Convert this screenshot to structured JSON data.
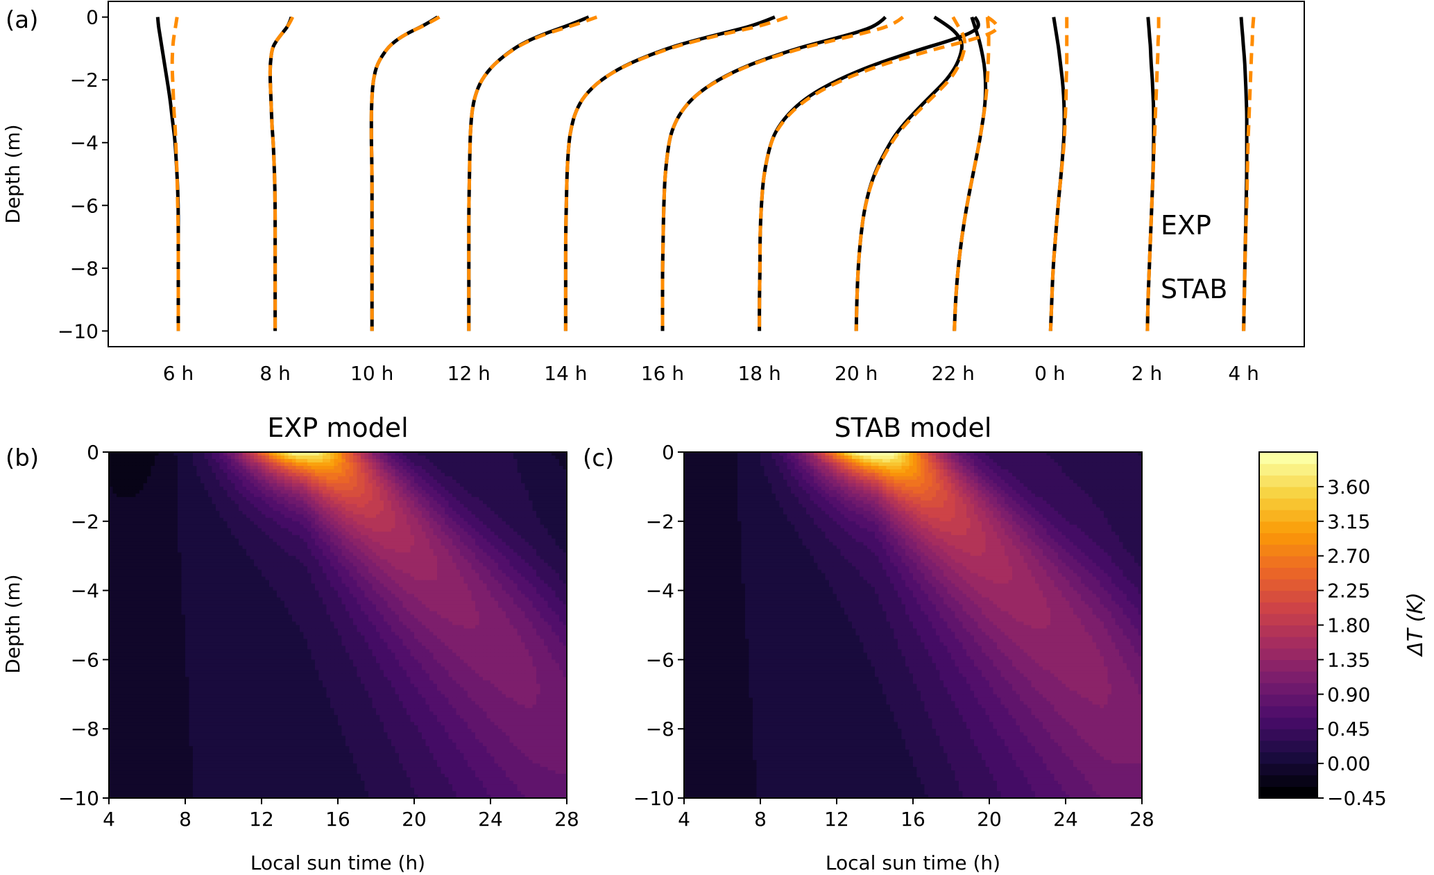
{
  "colors": {
    "exp": "#000000",
    "stab": "#ff8c00",
    "stab_title": "#ff8c00",
    "colormap": [
      "#000004",
      "#1b0c41",
      "#4a0c6b",
      "#781c6d",
      "#a52c60",
      "#cf4446",
      "#ed6925",
      "#fb9b06",
      "#f7d13d",
      "#fcffa4"
    ]
  },
  "chart_data": [
    {
      "panel_label": "(a)",
      "type": "line",
      "ylabel": "Depth (m)",
      "ylim": [
        -10.5,
        0.5
      ],
      "yticks": [
        0,
        -2,
        -4,
        -6,
        -8,
        -10
      ],
      "ytick_labels": [
        "0",
        "−2",
        "−4",
        "−6",
        "−8",
        "−10"
      ],
      "categories": [
        "6 h",
        "8 h",
        "10 h",
        "12 h",
        "14 h",
        "16 h",
        "18 h",
        "20 h",
        "22 h",
        "0 h",
        "2 h",
        "4 h"
      ],
      "legend": [
        {
          "name": "EXP",
          "color": "#000000",
          "style": "solid"
        },
        {
          "name": "STAB",
          "color": "#ff8c00",
          "style": "dashed"
        }
      ],
      "legend_position": "lower-right",
      "depth": [
        0,
        -0.25,
        -0.5,
        -0.75,
        -1,
        -1.5,
        -2,
        -2.5,
        -3,
        -3.5,
        -4,
        -5,
        -6,
        -7,
        -8,
        -9,
        -10
      ],
      "series": [
        {
          "name": "EXP",
          "profiles_K": [
            [
              -0.33,
              -0.32,
              -0.3,
              -0.28,
              -0.26,
              -0.22,
              -0.18,
              -0.14,
              -0.11,
              -0.08,
              -0.05,
              -0.02,
              0,
              0,
              0,
              0,
              0
            ],
            [
              0.26,
              0.22,
              0.12,
              0.02,
              -0.05,
              -0.08,
              -0.08,
              -0.07,
              -0.06,
              -0.05,
              -0.03,
              -0.01,
              0,
              0,
              0,
              0,
              0
            ],
            [
              1.05,
              0.85,
              0.58,
              0.38,
              0.24,
              0.08,
              0.02,
              0,
              -0.01,
              -0.01,
              -0.01,
              0,
              0,
              0,
              0,
              0,
              0
            ],
            [
              1.92,
              1.62,
              1.25,
              0.95,
              0.72,
              0.4,
              0.2,
              0.1,
              0.05,
              0.03,
              0.02,
              0.01,
              0,
              0,
              0,
              0,
              0
            ],
            [
              3.35,
              3.05,
              2.55,
              2.05,
              1.62,
              0.98,
              0.56,
              0.3,
              0.16,
              0.09,
              0.05,
              0.02,
              0.01,
              0,
              0,
              0,
              0
            ],
            [
              3.57,
              3.45,
              3.1,
              2.62,
              2.15,
              1.4,
              0.88,
              0.52,
              0.3,
              0.17,
              0.1,
              0.04,
              0.02,
              0.01,
              0,
              0,
              0
            ],
            [
              3.45,
              3.55,
              3.4,
              3.05,
              2.62,
              1.85,
              1.25,
              0.8,
              0.5,
              0.3,
              0.18,
              0.07,
              0.03,
              0.01,
              0.01,
              0,
              0
            ],
            [
              1.25,
              1.45,
              1.6,
              1.68,
              1.7,
              1.62,
              1.45,
              1.2,
              0.95,
              0.72,
              0.54,
              0.28,
              0.14,
              0.07,
              0.03,
              0.01,
              0
            ],
            [
              0.3,
              0.34,
              0.38,
              0.42,
              0.45,
              0.5,
              0.52,
              0.52,
              0.5,
              0.46,
              0.42,
              0.32,
              0.22,
              0.14,
              0.08,
              0.04,
              0.02
            ],
            [
              0.06,
              0.08,
              0.1,
              0.12,
              0.14,
              0.17,
              0.2,
              0.22,
              0.23,
              0.23,
              0.22,
              0.18,
              0.13,
              0.09,
              0.05,
              0.03,
              0.01
            ],
            [
              0.02,
              0.03,
              0.04,
              0.05,
              0.06,
              0.07,
              0.09,
              0.1,
              0.11,
              0.11,
              0.11,
              0.1,
              0.08,
              0.06,
              0.04,
              0.02,
              0.01
            ],
            [
              -0.04,
              -0.03,
              -0.02,
              -0.01,
              0,
              0.02,
              0.03,
              0.04,
              0.05,
              0.05,
              0.05,
              0.05,
              0.04,
              0.03,
              0.02,
              0.01,
              0
            ]
          ]
        },
        {
          "name": "STAB",
          "profiles_K": [
            [
              -0.02,
              -0.04,
              -0.06,
              -0.08,
              -0.09,
              -0.1,
              -0.09,
              -0.08,
              -0.07,
              -0.05,
              -0.04,
              -0.02,
              -0.01,
              0,
              0,
              0,
              0
            ],
            [
              0.28,
              0.22,
              0.12,
              0.02,
              -0.05,
              -0.08,
              -0.08,
              -0.07,
              -0.06,
              -0.05,
              -0.03,
              -0.01,
              0,
              0,
              0,
              0,
              0
            ],
            [
              1.08,
              0.86,
              0.58,
              0.38,
              0.24,
              0.08,
              0.02,
              0,
              -0.01,
              -0.01,
              -0.01,
              0,
              0,
              0,
              0,
              0,
              0
            ],
            [
              2.05,
              1.7,
              1.28,
              0.97,
              0.73,
              0.4,
              0.2,
              0.1,
              0.05,
              0.03,
              0.02,
              0.01,
              0,
              0,
              0,
              0,
              0
            ],
            [
              3.55,
              3.2,
              2.62,
              2.1,
              1.65,
              0.99,
              0.56,
              0.3,
              0.16,
              0.09,
              0.05,
              0.02,
              0.01,
              0,
              0,
              0,
              0
            ],
            [
              3.85,
              3.7,
              3.25,
              2.72,
              2.2,
              1.42,
              0.89,
              0.52,
              0.3,
              0.17,
              0.1,
              0.04,
              0.02,
              0.01,
              0,
              0,
              0
            ],
            [
              3.65,
              3.85,
              3.75,
              3.35,
              2.85,
              1.98,
              1.32,
              0.84,
              0.52,
              0.31,
              0.18,
              0.07,
              0.03,
              0.01,
              0.01,
              0,
              0
            ],
            [
              1.55,
              1.62,
              1.7,
              1.74,
              1.74,
              1.66,
              1.5,
              1.25,
              0.99,
              0.75,
              0.56,
              0.29,
              0.14,
              0.07,
              0.03,
              0.01,
              0
            ],
            [
              0.55,
              0.56,
              0.57,
              0.57,
              0.57,
              0.56,
              0.55,
              0.53,
              0.5,
              0.46,
              0.42,
              0.32,
              0.22,
              0.14,
              0.08,
              0.04,
              0.02
            ],
            [
              0.27,
              0.27,
              0.27,
              0.27,
              0.27,
              0.27,
              0.26,
              0.26,
              0.25,
              0.24,
              0.23,
              0.18,
              0.13,
              0.09,
              0.05,
              0.03,
              0.01
            ],
            [
              0.19,
              0.19,
              0.19,
              0.18,
              0.18,
              0.17,
              0.16,
              0.15,
              0.14,
              0.13,
              0.12,
              0.1,
              0.08,
              0.06,
              0.04,
              0.02,
              0.01
            ],
            [
              0.16,
              0.15,
              0.14,
              0.14,
              0.13,
              0.12,
              0.11,
              0.1,
              0.09,
              0.08,
              0.07,
              0.06,
              0.05,
              0.03,
              0.02,
              0.01,
              0
            ]
          ]
        }
      ]
    },
    {
      "panel_label": "(b)",
      "type": "heatmap",
      "title": "EXP model",
      "xlabel": "Local sun time (h)",
      "ylabel": "Depth (m)",
      "xlim": [
        4,
        28
      ],
      "ylim": [
        -10,
        0
      ],
      "xticks": [
        4,
        8,
        12,
        16,
        20,
        24,
        28
      ],
      "yticks": [
        0,
        -2,
        -4,
        -6,
        -8,
        -10
      ],
      "ytick_labels": [
        "0",
        "−2",
        "−4",
        "−6",
        "−8",
        "−10"
      ],
      "field": {
        "peak_K": 3.85,
        "peak_time_h": 14.2,
        "peak_depth_m": 0,
        "cool_K": -0.3,
        "night_mixed_K": 0.2
      }
    },
    {
      "panel_label": "(c)",
      "type": "heatmap",
      "title": "STAB model",
      "xlabel": "Local sun time (h)",
      "ylabel": "",
      "xlim": [
        4,
        28
      ],
      "ylim": [
        -10,
        0
      ],
      "xticks": [
        4,
        8,
        12,
        16,
        20,
        24,
        28
      ],
      "yticks": [
        0,
        -2,
        -4,
        -6,
        -8,
        -10
      ],
      "ytick_labels": [
        "0",
        "−2",
        "−4",
        "−6",
        "−8",
        "−10"
      ],
      "field": {
        "peak_K": 4.05,
        "peak_time_h": 14.0,
        "peak_depth_m": 0,
        "cool_K": -0.12,
        "night_mixed_K": 0.3
      }
    },
    {
      "type": "colorbar",
      "label": "ΔT (K)",
      "range": [
        -0.45,
        4.05
      ],
      "ticks": [
        3.6,
        3.15,
        2.7,
        2.25,
        1.8,
        1.35,
        0.9,
        0.45,
        0.0,
        -0.45
      ],
      "tick_labels": [
        "3.60",
        "3.15",
        "2.70",
        "2.25",
        "1.80",
        "1.35",
        "0.90",
        "0.45",
        "0.00",
        "−0.45"
      ],
      "levels": 30
    }
  ]
}
